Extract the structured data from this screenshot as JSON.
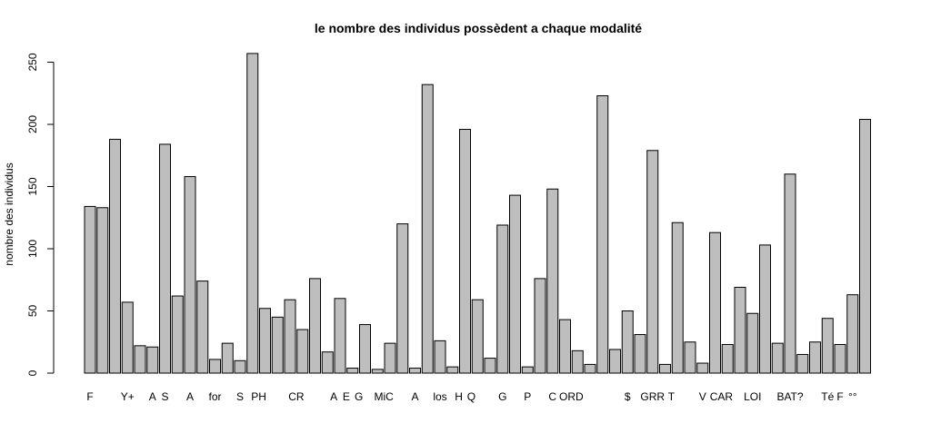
{
  "chart_data": {
    "type": "bar",
    "title": "le nombre des individus possèdent a chaque modalité",
    "xlabel": "",
    "ylabel": "nombre des individus",
    "ylim": [
      0,
      260
    ],
    "y_ticks": [
      0,
      50,
      100,
      150,
      200,
      250
    ],
    "grid": false,
    "legend": "none",
    "bar_fill": "#bebebe",
    "bar_stroke": "#000000",
    "values": [
      134,
      133,
      188,
      57,
      22,
      21,
      184,
      62,
      158,
      74,
      11,
      24,
      10,
      257,
      52,
      45,
      59,
      35,
      76,
      17,
      60,
      4,
      39,
      3,
      24,
      120,
      4,
      232,
      26,
      5,
      196,
      59,
      12,
      119,
      143,
      5,
      76,
      148,
      43,
      18,
      7,
      223,
      19,
      50,
      31,
      179,
      7,
      121,
      25,
      8,
      113,
      23,
      69,
      48,
      103,
      24,
      160,
      15,
      25,
      44,
      23,
      63,
      204
    ],
    "category_labels": [
      {
        "text": "F",
        "bar": 0
      },
      {
        "text": "Y+",
        "bar": 3
      },
      {
        "text": "A",
        "bar": 5
      },
      {
        "text": "S",
        "bar": 6
      },
      {
        "text": "A",
        "bar": 8
      },
      {
        "text": "for",
        "bar": 10
      },
      {
        "text": "S",
        "bar": 12
      },
      {
        "text": "PH",
        "bar": 13.5
      },
      {
        "text": "CR",
        "bar": 16.5
      },
      {
        "text": "A",
        "bar": 19.5
      },
      {
        "text": "E",
        "bar": 20.5
      },
      {
        "text": "G",
        "bar": 21.5
      },
      {
        "text": "MiC",
        "bar": 23.5
      },
      {
        "text": "A",
        "bar": 26
      },
      {
        "text": "los",
        "bar": 28
      },
      {
        "text": "H",
        "bar": 29.5
      },
      {
        "text": "Q",
        "bar": 30.5
      },
      {
        "text": "G",
        "bar": 33
      },
      {
        "text": "P",
        "bar": 35
      },
      {
        "text": "C",
        "bar": 37
      },
      {
        "text": "ORD",
        "bar": 38.5
      },
      {
        "text": "$",
        "bar": 43
      },
      {
        "text": "GRR",
        "bar": 45
      },
      {
        "text": "T",
        "bar": 46.5
      },
      {
        "text": "V",
        "bar": 49
      },
      {
        "text": "CAR",
        "bar": 50.5
      },
      {
        "text": "LOI",
        "bar": 53
      },
      {
        "text": "BAT?",
        "bar": 56
      },
      {
        "text": "Té",
        "bar": 59
      },
      {
        "text": "F",
        "bar": 60
      },
      {
        "text": "°°",
        "bar": 61
      }
    ]
  }
}
